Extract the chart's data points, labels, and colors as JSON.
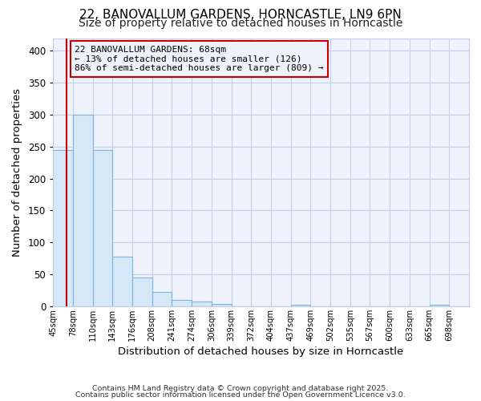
{
  "title_line1": "22, BANOVALLUM GARDENS, HORNCASTLE, LN9 6PN",
  "title_line2": "Size of property relative to detached houses in Horncastle",
  "xlabel": "Distribution of detached houses by size in Horncastle",
  "ylabel": "Number of detached properties",
  "bins": [
    "45sqm",
    "78sqm",
    "110sqm",
    "143sqm",
    "176sqm",
    "208sqm",
    "241sqm",
    "274sqm",
    "306sqm",
    "339sqm",
    "372sqm",
    "404sqm",
    "437sqm",
    "469sqm",
    "502sqm",
    "535sqm",
    "567sqm",
    "600sqm",
    "633sqm",
    "665sqm",
    "698sqm"
  ],
  "values": [
    245,
    300,
    245,
    78,
    45,
    22,
    10,
    8,
    4,
    0,
    0,
    0,
    3,
    0,
    0,
    0,
    0,
    0,
    0,
    3,
    0
  ],
  "bar_facecolor": "#d6e8f7",
  "bar_edgecolor": "#7ab4d8",
  "vline_x_bin": 0.65,
  "vline_color": "#cc0000",
  "annotation_text": "22 BANOVALLUM GARDENS: 68sqm\n← 13% of detached houses are smaller (126)\n86% of semi-detached houses are larger (809) →",
  "annotation_box_edgecolor": "#cc0000",
  "ylim": [
    0,
    420
  ],
  "yticks": [
    0,
    50,
    100,
    150,
    200,
    250,
    300,
    350,
    400
  ],
  "footer_line1": "Contains HM Land Registry data © Crown copyright and database right 2025.",
  "footer_line2": "Contains public sector information licensed under the Open Government Licence v3.0.",
  "fig_background": "#ffffff",
  "plot_background": "#eef2fb",
  "grid_color": "#c5cee8",
  "title1_fontsize": 11,
  "title2_fontsize": 10
}
